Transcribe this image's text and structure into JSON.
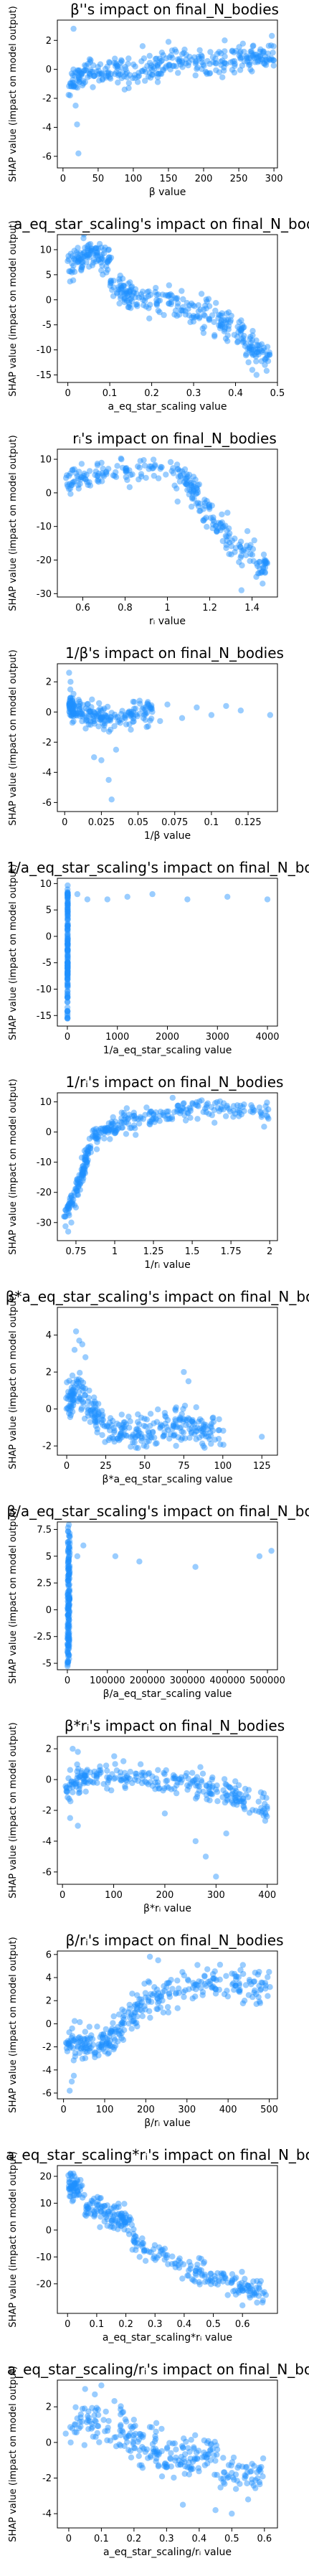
{
  "style": {
    "point_color": "#1e90ff"
  },
  "chart_data": [
    {
      "type": "scatter",
      "title": "β''s impact on final_N_bodies",
      "xlabel": "β value",
      "ylabel": "SHAP value (impact on model output)",
      "xlim": [
        -8,
        305
      ],
      "ylim": [
        -6.8,
        3.4
      ],
      "xticks": [
        0,
        50,
        100,
        150,
        200,
        250,
        300
      ],
      "yticks": [
        -6,
        -4,
        -2,
        0,
        2
      ],
      "segments": [
        [
          5,
          -1.2,
          40,
          0.2
        ],
        [
          40,
          -0.2,
          90,
          -0.1
        ],
        [
          90,
          -0.3,
          140,
          0.1
        ],
        [
          140,
          0.4,
          200,
          0.5
        ],
        [
          200,
          0.5,
          260,
          0.8
        ],
        [
          260,
          0.7,
          300,
          1.0
        ]
      ],
      "spread": 0.9,
      "outliers": [
        [
          15,
          2.8
        ],
        [
          18,
          -2.5
        ],
        [
          20,
          -3.8
        ],
        [
          22,
          -5.8
        ],
        [
          10,
          -1.8
        ],
        [
          150,
          1.9
        ],
        [
          230,
          2.0
        ],
        [
          270,
          1.6
        ]
      ]
    },
    {
      "type": "scatter",
      "title": "a_eq_star_scaling's impact on final_N_bodies",
      "xlabel": "a_eq_star_scaling value",
      "ylabel": "SHAP value (impact on model output)",
      "xlim": [
        -0.025,
        0.5
      ],
      "ylim": [
        -16.5,
        13
      ],
      "xticks": [
        0.0,
        0.1,
        0.2,
        0.3,
        0.4,
        0.5
      ],
      "yticks": [
        -15,
        -10,
        -5,
        0,
        5,
        10
      ],
      "segments": [
        [
          0.0,
          7,
          0.05,
          9
        ],
        [
          0.05,
          9,
          0.1,
          8
        ],
        [
          0.1,
          3,
          0.15,
          1
        ],
        [
          0.15,
          1,
          0.25,
          0
        ],
        [
          0.25,
          -1,
          0.35,
          -3
        ],
        [
          0.35,
          -4,
          0.42,
          -7
        ],
        [
          0.42,
          -9,
          0.48,
          -11
        ]
      ],
      "spread": 3.0,
      "outliers": [
        [
          0.44,
          -14
        ],
        [
          0.45,
          -15
        ],
        [
          0.47,
          -13
        ],
        [
          0.05,
          11
        ]
      ]
    },
    {
      "type": "scatter",
      "title": "rᵢ's impact on final_N_bodies",
      "xlabel": "rᵢ value",
      "ylabel": "SHAP value (impact on model output)",
      "xlim": [
        0.48,
        1.52
      ],
      "ylim": [
        -31,
        13
      ],
      "xticks": [
        0.6,
        0.8,
        1.0,
        1.2,
        1.4
      ],
      "yticks": [
        -30,
        -20,
        -10,
        0,
        10
      ],
      "segments": [
        [
          0.52,
          3,
          0.7,
          6
        ],
        [
          0.7,
          6,
          1.05,
          7
        ],
        [
          1.05,
          5,
          1.15,
          0
        ],
        [
          1.15,
          -4,
          1.3,
          -14
        ],
        [
          1.3,
          -14,
          1.47,
          -22
        ]
      ],
      "spread": 4.0,
      "outliers": [
        [
          1.45,
          -27
        ],
        [
          1.42,
          -25
        ],
        [
          1.35,
          -29
        ]
      ]
    },
    {
      "type": "scatter",
      "title": "1/β's impact on final_N_bodies",
      "xlabel": "1/β value",
      "ylabel": "SHAP value (impact on model output)",
      "xlim": [
        -0.005,
        0.145
      ],
      "ylim": [
        -6.6,
        3.2
      ],
      "xticks": [
        0.0,
        0.025,
        0.05,
        0.075,
        0.1,
        0.125
      ],
      "yticks": [
        -6,
        -4,
        -2,
        0,
        2
      ],
      "segments": [
        [
          0.003,
          0.5,
          0.006,
          0.2
        ],
        [
          0.006,
          0.1,
          0.02,
          -0.4
        ],
        [
          0.02,
          -0.5,
          0.04,
          -0.3
        ],
        [
          0.04,
          -0.3,
          0.06,
          0.0
        ]
      ],
      "spread": 0.8,
      "outliers": [
        [
          0.003,
          2.6
        ],
        [
          0.004,
          2.0
        ],
        [
          0.006,
          1.2
        ],
        [
          0.025,
          -3.2
        ],
        [
          0.03,
          -4.5
        ],
        [
          0.032,
          -5.8
        ],
        [
          0.035,
          -2.5
        ],
        [
          0.02,
          -3.0
        ],
        [
          0.07,
          0.5
        ],
        [
          0.09,
          0.3
        ],
        [
          0.1,
          -0.2
        ],
        [
          0.12,
          0.1
        ],
        [
          0.14,
          -0.2
        ],
        [
          0.11,
          0.4
        ],
        [
          0.08,
          -0.4
        ],
        [
          0.065,
          -0.6
        ]
      ]
    },
    {
      "type": "scatter",
      "title": "1/a_eq_star_scaling's impact on final_N_bodies",
      "xlabel": "1/a_eq_star_scaling value",
      "ylabel": "SHAP value (impact on model output)",
      "xlim": [
        -200,
        4200
      ],
      "ylim": [
        -17,
        11
      ],
      "xticks": [
        0,
        1000,
        2000,
        3000,
        4000
      ],
      "yticks": [
        -15,
        -10,
        -5,
        0,
        5,
        10
      ],
      "segments": [
        [
          2,
          -16,
          4,
          9
        ],
        [
          4,
          -12,
          6,
          9
        ],
        [
          6,
          -8,
          8,
          9
        ]
      ],
      "spread": 2.0,
      "outliers": [
        [
          200,
          8
        ],
        [
          400,
          7
        ],
        [
          800,
          7
        ],
        [
          1200,
          7.5
        ],
        [
          1700,
          8
        ],
        [
          2400,
          7
        ],
        [
          3200,
          7.5
        ],
        [
          4000,
          7
        ]
      ]
    },
    {
      "type": "scatter",
      "title": "1/rᵢ's impact on final_N_bodies",
      "xlabel": "1/rᵢ value",
      "ylabel": "SHAP value (impact on model output)",
      "xlim": [
        0.63,
        2.05
      ],
      "ylim": [
        -36,
        13
      ],
      "xticks": [
        0.75,
        1.0,
        1.25,
        1.5,
        1.75,
        2.0
      ],
      "yticks": [
        -30,
        -20,
        -10,
        0,
        10
      ],
      "segments": [
        [
          0.68,
          -28,
          0.78,
          -15
        ],
        [
          0.78,
          -15,
          0.85,
          -3
        ],
        [
          0.85,
          -2,
          1.0,
          2
        ],
        [
          1.0,
          2,
          1.25,
          6
        ],
        [
          1.25,
          6,
          1.6,
          8
        ],
        [
          1.6,
          8,
          2.0,
          6
        ]
      ],
      "spread": 3.5,
      "outliers": [
        [
          0.7,
          -33
        ],
        [
          0.72,
          -30
        ],
        [
          0.75,
          -25
        ]
      ]
    },
    {
      "type": "scatter",
      "title": "β*a_eq_star_scaling's impact on final_N_bodies",
      "xlabel": "β*a_eq_star_scaling value",
      "ylabel": "SHAP value (impact on model output)",
      "xlim": [
        -6,
        135
      ],
      "ylim": [
        -2.5,
        5.5
      ],
      "xticks": [
        0,
        25,
        50,
        75,
        100,
        125
      ],
      "yticks": [
        -2,
        0,
        2,
        4
      ],
      "segments": [
        [
          0,
          0,
          8,
          1.5
        ],
        [
          8,
          1.0,
          20,
          -0.5
        ],
        [
          20,
          -0.8,
          40,
          -1.4
        ],
        [
          40,
          -1.4,
          60,
          -1.2
        ],
        [
          60,
          -1.2,
          80,
          -0.5
        ],
        [
          80,
          -1.0,
          100,
          -1.5
        ]
      ],
      "spread": 1.0,
      "outliers": [
        [
          6,
          4.2
        ],
        [
          8,
          3.7
        ],
        [
          10,
          3.5
        ],
        [
          5,
          3.2
        ],
        [
          12,
          2.8
        ],
        [
          75,
          2.0
        ],
        [
          78,
          1.5
        ],
        [
          125,
          -1.5
        ]
      ]
    },
    {
      "type": "scatter",
      "title": "β/a_eq_star_scaling's impact on final_N_bodies",
      "xlabel": "β/a_eq_star_scaling value",
      "ylabel": "SHAP value (impact on model output)",
      "xlim": [
        -25000,
        525000
      ],
      "ylim": [
        -5.6,
        8.2
      ],
      "xticks": [
        0,
        100000,
        200000,
        300000,
        400000,
        500000
      ],
      "yticks": [
        -5.0,
        -2.5,
        0.0,
        2.5,
        5.0,
        7.5
      ],
      "segments": [
        [
          500,
          -5,
          2000,
          7
        ],
        [
          2000,
          -4.5,
          4000,
          7
        ],
        [
          4000,
          -4,
          6000,
          6
        ]
      ],
      "spread": 2.5,
      "outliers": [
        [
          25000,
          5
        ],
        [
          40000,
          6
        ],
        [
          120000,
          5
        ],
        [
          180000,
          4.5
        ],
        [
          320000,
          4
        ],
        [
          480000,
          5
        ],
        [
          510000,
          5.5
        ]
      ]
    },
    {
      "type": "scatter",
      "title": "β*rᵢ's impact on final_N_bodies",
      "xlabel": "β*rᵢ value",
      "ylabel": "SHAP value (impact on model output)",
      "xlim": [
        -10,
        420
      ],
      "ylim": [
        -6.8,
        2.8
      ],
      "xticks": [
        0,
        100,
        200,
        300,
        400
      ],
      "yticks": [
        -6,
        -4,
        -2,
        0,
        2
      ],
      "segments": [
        [
          5,
          -0.5,
          50,
          0.3
        ],
        [
          50,
          0.3,
          150,
          0.1
        ],
        [
          150,
          0.1,
          250,
          -0.1
        ],
        [
          250,
          -0.2,
          330,
          -0.8
        ],
        [
          330,
          -1.0,
          400,
          -2.0
        ]
      ],
      "spread": 0.8,
      "outliers": [
        [
          20,
          2.0
        ],
        [
          30,
          1.8
        ],
        [
          15,
          -2.5
        ],
        [
          30,
          -3.0
        ],
        [
          260,
          -4.0
        ],
        [
          280,
          -5.0
        ],
        [
          300,
          -6.3
        ],
        [
          320,
          -3.5
        ],
        [
          200,
          -2.2
        ]
      ]
    },
    {
      "type": "scatter",
      "title": "β/rᵢ's impact on final_N_bodies",
      "xlabel": "β/rᵢ value",
      "ylabel": "SHAP value (impact on model output)",
      "xlim": [
        -15,
        520
      ],
      "ylim": [
        -6.5,
        6.3
      ],
      "xticks": [
        0,
        100,
        200,
        300,
        400,
        500
      ],
      "yticks": [
        -6,
        -4,
        -2,
        0,
        2,
        4,
        6
      ],
      "segments": [
        [
          5,
          -1.5,
          60,
          -2.0
        ],
        [
          60,
          -2.0,
          120,
          -1.5
        ],
        [
          120,
          -1.0,
          180,
          1.0
        ],
        [
          180,
          1.5,
          260,
          3.0
        ],
        [
          260,
          3.0,
          380,
          3.5
        ],
        [
          380,
          3.5,
          500,
          3.2
        ]
      ],
      "spread": 1.4,
      "outliers": [
        [
          15,
          -5.8
        ],
        [
          25,
          -4.5
        ],
        [
          20,
          -5
        ],
        [
          210,
          5.8
        ],
        [
          230,
          5.5
        ],
        [
          440,
          2
        ],
        [
          480,
          3
        ]
      ]
    },
    {
      "type": "scatter",
      "title": "a_eq_star_scaling*rᵢ's impact on final_N_bodies",
      "xlabel": "a_eq_star_scaling*rᵢ value",
      "ylabel": "SHAP value (impact on model output)",
      "xlim": [
        -0.035,
        0.72
      ],
      "ylim": [
        -31,
        24
      ],
      "xticks": [
        0.0,
        0.1,
        0.2,
        0.3,
        0.4,
        0.5,
        0.6
      ],
      "yticks": [
        -20,
        -10,
        0,
        10,
        20
      ],
      "segments": [
        [
          0.0,
          17,
          0.05,
          15
        ],
        [
          0.05,
          10,
          0.15,
          5
        ],
        [
          0.15,
          5,
          0.22,
          3
        ],
        [
          0.22,
          -5,
          0.4,
          -12
        ],
        [
          0.4,
          -14,
          0.55,
          -18
        ],
        [
          0.55,
          -20,
          0.68,
          -24
        ]
      ],
      "spread": 4.5,
      "outliers": [
        [
          0.6,
          -28
        ],
        [
          0.65,
          -27
        ],
        [
          0.02,
          21
        ]
      ]
    },
    {
      "type": "scatter",
      "title": "a_eq_star_scaling/rᵢ's impact on final_N_bodies",
      "xlabel": "a_eq_star_scaling/rᵢ value",
      "ylabel": "SHAP value (impact on model output)",
      "xlim": [
        -0.035,
        0.64
      ],
      "ylim": [
        -4.8,
        3.5
      ],
      "xticks": [
        0.0,
        0.1,
        0.2,
        0.3,
        0.4,
        0.5,
        0.6
      ],
      "yticks": [
        -4,
        -2,
        0,
        2
      ],
      "segments": [
        [
          0.0,
          0.8,
          0.15,
          1.2
        ],
        [
          0.15,
          1.0,
          0.25,
          -0.5
        ],
        [
          0.25,
          -0.5,
          0.35,
          -1.0
        ],
        [
          0.35,
          -1.0,
          0.45,
          -0.5
        ],
        [
          0.45,
          -1.5,
          0.6,
          -2.0
        ]
      ],
      "spread": 1.2,
      "outliers": [
        [
          0.05,
          3.0
        ],
        [
          0.08,
          2.7
        ],
        [
          0.1,
          3.2
        ],
        [
          0.35,
          -3.5
        ],
        [
          0.45,
          -3.8
        ],
        [
          0.5,
          -4.0
        ],
        [
          0.55,
          -3.2
        ]
      ]
    }
  ]
}
